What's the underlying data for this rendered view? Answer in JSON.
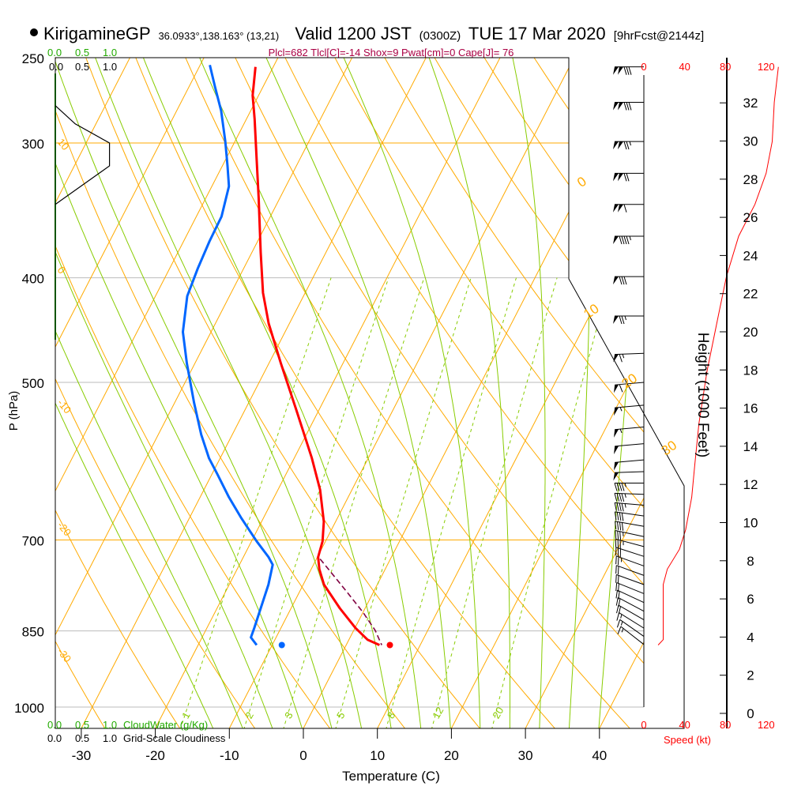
{
  "header": {
    "station": "KirigamineGP",
    "coords": "36.0933°,138.163° (13,21)",
    "valid": "Valid 1200 JST",
    "zulu": "(0300Z)",
    "date": "TUE 17 Mar 2020",
    "forecast": "[9hrFcst@2144z]",
    "indices": "Plcl=682 Tlcl[C]=-14 Shox=9 Pwat[cm]=0 Cape[J]= 76"
  },
  "legend": {
    "cloudwater_ticks": [
      "0.0",
      "0.5",
      "1.0"
    ],
    "cloudwater_label": "CloudWater (g/Kg)",
    "cloudiness_ticks": [
      "0.0",
      "0.5",
      "1.0"
    ],
    "cloudiness_label": "Grid-Scale Cloudiness"
  },
  "colors": {
    "temperature": "#ff0000",
    "dewpoint": "#0066ff",
    "parcel": "#800040",
    "isotherm": "#ffaa00",
    "moist": "#88cc00",
    "mixing": "#88cc00",
    "indices": "#aa0044"
  },
  "chart_data": {
    "type": "skewt",
    "title": "KirigamineGP Valid 1200 JST TUE 17 Mar 2020",
    "xlabel": "Temperature (C)",
    "ylabel": "P (hPa)",
    "y2label": "Height (1000 Feet)",
    "speed_label": "Speed (kt)",
    "xticks": [
      -30,
      -20,
      -10,
      0,
      10,
      20,
      30,
      40
    ],
    "pressure_ticks": [
      250,
      300,
      400,
      500,
      700,
      850,
      1000
    ],
    "height_ticks": [
      0,
      2,
      4,
      6,
      8,
      10,
      12,
      14,
      16,
      18,
      20,
      22,
      24,
      26,
      28,
      30,
      32
    ],
    "speed_ticks": [
      0,
      40,
      80,
      120
    ],
    "isotherm_labels": [
      0,
      10,
      20,
      30
    ],
    "theta_labels": [
      10,
      0,
      -10,
      -20,
      -30
    ],
    "mixing_ratio_labels": [
      1,
      2,
      3,
      5,
      8,
      12,
      20
    ],
    "temperature": {
      "p": [
        255,
        271,
        285,
        310,
        337,
        379,
        413,
        441,
        480,
        531,
        588,
        629,
        673,
        702,
        726,
        745,
        770,
        810,
        845,
        866,
        876
      ],
      "t": [
        -52.4,
        -50.8,
        -48.9,
        -45.9,
        -42.9,
        -38.8,
        -35.7,
        -32.8,
        -28.4,
        -23.0,
        -17.6,
        -14.3,
        -11.6,
        -10.4,
        -9.9,
        -8.9,
        -7.2,
        -3.4,
        0.1,
        2.5,
        4.5
      ]
    },
    "dewpoint": {
      "p": [
        254,
        266,
        280,
        299,
        315,
        329,
        351,
        370,
        392,
        416,
        449,
        480,
        522,
        559,
        588,
        608,
        639,
        667,
        702,
        726,
        738,
        770,
        810,
        845,
        862,
        876
      ],
      "t": [
        -58.7,
        -56.5,
        -54.0,
        -51.3,
        -49.3,
        -47.7,
        -46.6,
        -46.5,
        -46.2,
        -45.7,
        -43.8,
        -41.1,
        -37.4,
        -34.2,
        -31.5,
        -29.3,
        -26.1,
        -23.1,
        -19.3,
        -16.6,
        -15.5,
        -14.7,
        -14.1,
        -13.6,
        -13.4,
        -12.1
      ]
    },
    "parcel": {
      "p": [
        729,
        751,
        783,
        817,
        849,
        876
      ],
      "t": [
        -9.5,
        -7.0,
        -3.5,
        0.0,
        2.9,
        4.8
      ]
    },
    "surface": {
      "p": 876,
      "t": 5.9,
      "td": -8.7
    },
    "wind_speed_profile": {
      "p": [
        876,
        866,
        770,
        745,
        714,
        685,
        639,
        596,
        546,
        488,
        434,
        399,
        366,
        342,
        320,
        299,
        275,
        255
      ],
      "kt": [
        14,
        19,
        19,
        23,
        35,
        41,
        47,
        50,
        54,
        62,
        73,
        81,
        93,
        109,
        120,
        126,
        128,
        132
      ]
    },
    "cloudiness_profile": {
      "p": [
        277,
        288,
        300,
        315,
        342
      ],
      "v": [
        0.0,
        0.36,
        0.98,
        0.98,
        0.0
      ]
    },
    "barbs": [
      [
        255,
        132,
        270
      ],
      [
        275,
        128,
        270
      ],
      [
        299,
        126,
        270
      ],
      [
        320,
        120,
        270
      ],
      [
        342,
        109,
        270
      ],
      [
        366,
        93,
        270
      ],
      [
        399,
        81,
        270
      ],
      [
        434,
        73,
        270
      ],
      [
        470,
        64,
        272
      ],
      [
        500,
        58,
        275
      ],
      [
        525,
        55,
        275
      ],
      [
        550,
        54,
        275
      ],
      [
        570,
        52,
        275
      ],
      [
        590,
        50,
        275
      ],
      [
        605,
        48,
        272
      ],
      [
        620,
        47,
        270
      ],
      [
        635,
        46,
        268
      ],
      [
        650,
        44,
        265
      ],
      [
        665,
        42,
        262
      ],
      [
        680,
        40,
        260
      ],
      [
        695,
        37,
        258
      ],
      [
        710,
        34,
        255
      ],
      [
        725,
        30,
        252
      ],
      [
        740,
        25,
        250
      ],
      [
        755,
        21,
        250
      ],
      [
        770,
        19,
        250
      ],
      [
        785,
        19,
        248
      ],
      [
        800,
        19,
        245
      ],
      [
        815,
        18,
        242
      ],
      [
        830,
        18,
        240
      ],
      [
        845,
        17,
        238
      ],
      [
        860,
        16,
        235
      ],
      [
        875,
        14,
        232
      ]
    ]
  }
}
